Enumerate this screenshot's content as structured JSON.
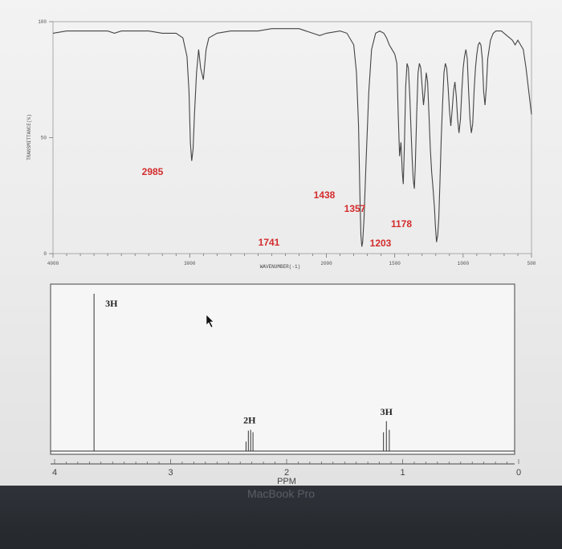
{
  "chart_data": [
    {
      "type": "line",
      "xlabel": "WAVENUMBER(-1)",
      "ylabel": "TRANSMITTANCE(%)",
      "xlim": [
        4000,
        500
      ],
      "ylim": [
        0,
        100
      ],
      "x_ticks": [
        {
          "value": 4000,
          "label": "4000"
        },
        {
          "value": 3000,
          "label": "3000"
        },
        {
          "value": 2000,
          "label": "2000"
        },
        {
          "value": 1500,
          "label": "1500"
        },
        {
          "value": 1000,
          "label": "1000"
        },
        {
          "value": 500,
          "label": "500"
        }
      ],
      "y_ticks": [
        {
          "value": 100,
          "label": "100"
        },
        {
          "value": 50,
          "label": "50"
        },
        {
          "value": 0,
          "label": "0"
        }
      ],
      "series": [
        {
          "x": [
            4000,
            3900,
            3800,
            3700,
            3600,
            3550,
            3500,
            3450,
            3400,
            3300,
            3200,
            3100,
            3050,
            3020,
            3005,
            2995,
            2985,
            2975,
            2965,
            2950,
            2935,
            2920,
            2900,
            2880,
            2860,
            2800,
            2700,
            2600,
            2500,
            2400,
            2300,
            2200,
            2100,
            2050,
            2000,
            1900,
            1850,
            1800,
            1780,
            1765,
            1755,
            1748,
            1741,
            1735,
            1725,
            1710,
            1690,
            1670,
            1640,
            1610,
            1580,
            1560,
            1540,
            1520,
            1500,
            1485,
            1475,
            1465,
            1455,
            1445,
            1438,
            1430,
            1420,
            1410,
            1400,
            1390,
            1380,
            1372,
            1365,
            1357,
            1350,
            1340,
            1330,
            1320,
            1310,
            1300,
            1290,
            1280,
            1270,
            1260,
            1250,
            1240,
            1230,
            1220,
            1210,
            1203,
            1195,
            1186,
            1178,
            1170,
            1160,
            1150,
            1140,
            1130,
            1120,
            1110,
            1100,
            1090,
            1080,
            1070,
            1060,
            1050,
            1040,
            1030,
            1020,
            1010,
            1000,
            990,
            980,
            970,
            960,
            950,
            940,
            930,
            920,
            910,
            900,
            890,
            880,
            870,
            860,
            850,
            840,
            830,
            820,
            800,
            780,
            760,
            740,
            720,
            700,
            680,
            660,
            640,
            620,
            600,
            580,
            560,
            540,
            520,
            500
          ],
          "y": [
            95,
            96,
            96,
            96,
            96,
            95,
            96,
            96,
            96,
            96,
            95,
            95,
            93,
            85,
            70,
            48,
            40,
            45,
            60,
            78,
            88,
            80,
            75,
            88,
            93,
            95,
            96,
            96,
            96,
            97,
            97,
            97,
            95,
            94,
            95,
            96,
            95,
            90,
            78,
            55,
            25,
            8,
            3,
            5,
            15,
            40,
            70,
            88,
            95,
            96,
            95,
            93,
            90,
            88,
            86,
            82,
            60,
            42,
            48,
            35,
            30,
            45,
            72,
            82,
            80,
            68,
            52,
            40,
            32,
            28,
            38,
            60,
            78,
            82,
            80,
            72,
            64,
            70,
            78,
            74,
            60,
            45,
            35,
            28,
            20,
            12,
            5,
            8,
            15,
            30,
            50,
            65,
            78,
            82,
            80,
            72,
            62,
            55,
            62,
            70,
            74,
            68,
            58,
            52,
            58,
            70,
            80,
            85,
            88,
            84,
            70,
            58,
            52,
            56,
            70,
            80,
            86,
            90,
            91,
            90,
            84,
            70,
            64,
            72,
            84,
            92,
            95,
            96,
            96,
            96,
            95,
            94,
            93,
            92,
            90,
            92,
            90,
            88,
            80,
            70,
            60
          ]
        }
      ],
      "annotations": [
        {
          "label": "2985",
          "x": 2985
        },
        {
          "label": "1741",
          "x": 1741
        },
        {
          "label": "1438",
          "x": 1438
        },
        {
          "label": "1357",
          "x": 1357
        },
        {
          "label": "1203",
          "x": 1203
        },
        {
          "label": "1178",
          "x": 1178
        }
      ],
      "colors": {
        "trace": "#444444",
        "annotation": "#d42b2b",
        "frame": "#9a9a9a"
      }
    },
    {
      "type": "line",
      "xlabel": "PPM",
      "xlim": [
        4,
        0
      ],
      "x_ticks": [
        {
          "value": 4,
          "label": "4"
        },
        {
          "value": 3,
          "label": "3"
        },
        {
          "value": 2,
          "label": "2"
        },
        {
          "value": 1,
          "label": "1"
        },
        {
          "value": 0,
          "label": "0"
        }
      ],
      "peaks": [
        {
          "shift": 3.66,
          "multiplicity": "singlet",
          "integration": "3H",
          "lines": [
            {
              "offset": 0,
              "height": 1.0
            }
          ]
        },
        {
          "shift": 2.32,
          "multiplicity": "quartet",
          "integration": "2H",
          "lines": [
            {
              "offset": -0.03,
              "height": 0.12
            },
            {
              "offset": -0.01,
              "height": 0.135
            },
            {
              "offset": 0.01,
              "height": 0.13
            },
            {
              "offset": 0.03,
              "height": 0.06
            }
          ]
        },
        {
          "shift": 1.14,
          "multiplicity": "triplet",
          "integration": "3H",
          "lines": [
            {
              "offset": -0.025,
              "height": 0.135
            },
            {
              "offset": 0,
              "height": 0.19
            },
            {
              "offset": 0.025,
              "height": 0.12
            }
          ]
        }
      ],
      "colors": {
        "trace": "#333333",
        "frame": "#444444"
      }
    }
  ],
  "bezel": {
    "label": "MacBook Pro"
  }
}
